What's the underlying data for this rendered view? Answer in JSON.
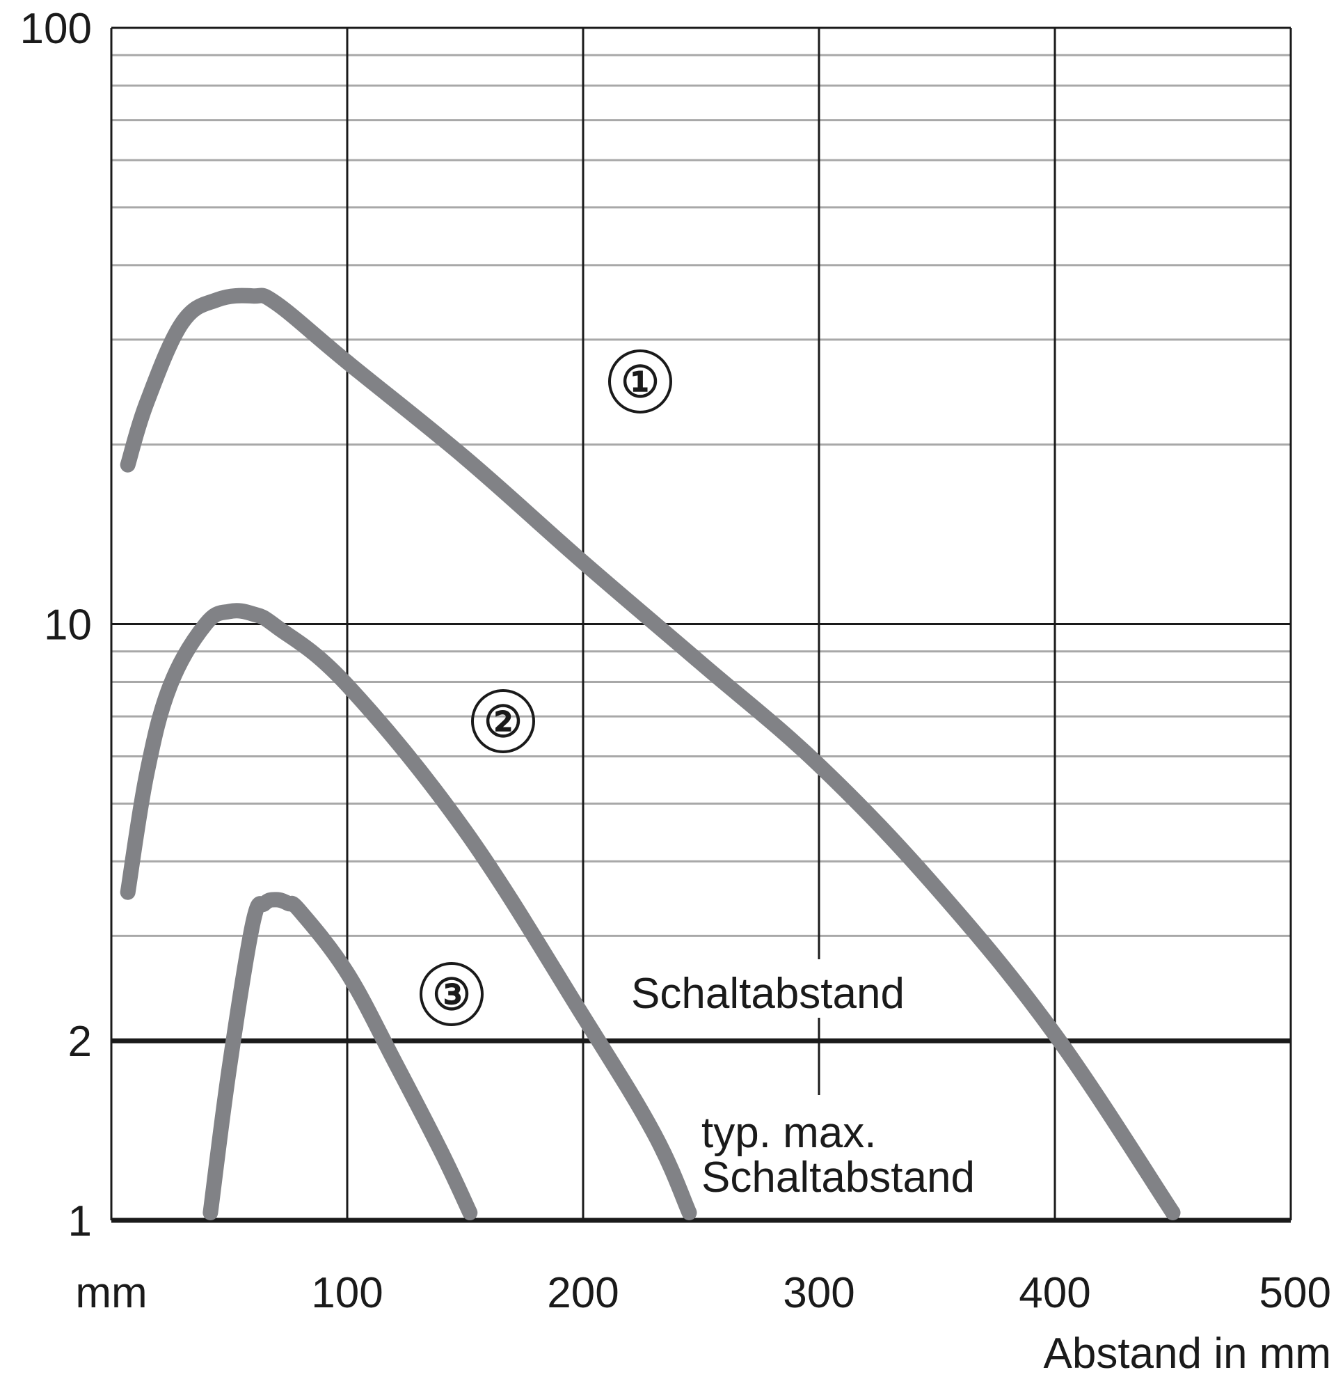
{
  "chart_data": {
    "type": "line",
    "title": "",
    "xlabel": "Abstand in mm",
    "x_unit_label": "mm",
    "ylabel": "",
    "xlim": [
      0,
      500
    ],
    "ylim": [
      1,
      100
    ],
    "yscale": "log",
    "x_ticks": [
      100,
      200,
      300,
      400,
      500
    ],
    "x_tick_labels": [
      "100",
      "200",
      "300",
      "400",
      "500"
    ],
    "y_ticks": [
      1,
      2,
      10,
      100
    ],
    "y_tick_labels": [
      "1",
      "2",
      "10",
      "100"
    ],
    "grid": true,
    "reference_lines": [
      {
        "y": 2,
        "label": "Schaltabstand"
      },
      {
        "y": 1,
        "label": "typ. max. Schaltabstand"
      }
    ],
    "annotations": {
      "schaltabstand": "Schaltabstand",
      "typ_max_line1": "typ. max.",
      "typ_max_line2": "Schaltabstand"
    },
    "series": [
      {
        "name": "①",
        "x": [
          7,
          15,
          30,
          45,
          60,
          70,
          100,
          150,
          200,
          250,
          300,
          350,
          400,
          450
        ],
        "y": [
          18.5,
          23.5,
          32,
          35,
          35.5,
          34.5,
          27.5,
          19,
          12.7,
          8.6,
          5.8,
          3.6,
          2.05,
          1.03
        ]
      },
      {
        "name": "②",
        "x": [
          7,
          15,
          25,
          40,
          50,
          60,
          70,
          100,
          150,
          200,
          230,
          245
        ],
        "y": [
          3.55,
          5.6,
          7.9,
          10.0,
          10.5,
          10.4,
          9.9,
          7.9,
          4.5,
          2.2,
          1.4,
          1.03
        ]
      },
      {
        "name": "③",
        "x": [
          42,
          50,
          60,
          65,
          70,
          75,
          80,
          100,
          120,
          140,
          152
        ],
        "y": [
          1.03,
          1.8,
          3.15,
          3.4,
          3.45,
          3.4,
          3.3,
          2.6,
          1.85,
          1.3,
          1.03
        ]
      }
    ],
    "markers": [
      "①",
      "②",
      "③"
    ]
  }
}
